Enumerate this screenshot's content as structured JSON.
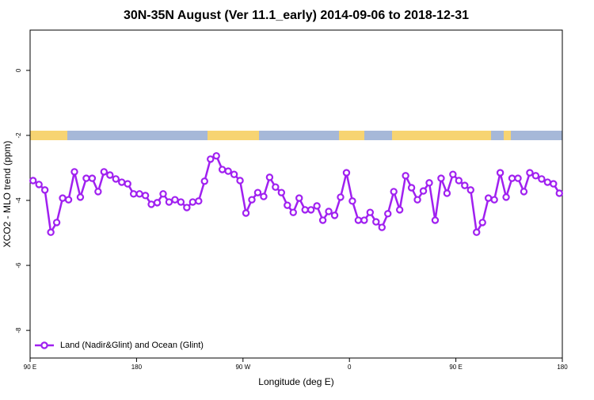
{
  "chart_data": {
    "type": "line",
    "title": "30N-35N August (Ver 11.1_early)   2014-09-06 to 2018-12-31",
    "x_label": "Longitude (deg E)",
    "y_label": "XCO2 - MLO trend (ppm)",
    "xlim": [
      90,
      540
    ],
    "xticks": [
      {
        "value": 90,
        "label": "90 E"
      },
      180,
      {
        "value": 270,
        "label": "90 W"
      },
      {
        "value": 360,
        "label": "0"
      },
      {
        "value": 450,
        "label": "90 E"
      },
      {
        "value": 540,
        "label": "180"
      }
    ],
    "ylim": [
      -8.85,
      1.24
    ],
    "yticks": [
      0,
      -2,
      -4,
      -6,
      -8
    ],
    "legend": "bottomleft",
    "x": [
      92.5,
      97.5,
      102.5,
      107.5,
      112.5,
      117.5,
      122.5,
      127.5,
      132.5,
      137.5,
      142.5,
      147.5,
      152.5,
      157.5,
      162.5,
      167.5,
      172.5,
      177.5,
      182.5,
      187.5,
      192.5,
      197.5,
      202.5,
      207.5,
      212.5,
      217.5,
      222.5,
      227.5,
      232.5,
      237.5,
      242.5,
      247.5,
      252.5,
      257.5,
      262.5,
      267.5,
      272.5,
      277.5,
      282.5,
      287.5,
      292.5,
      297.5,
      302.5,
      307.5,
      312.5,
      317.5,
      322.5,
      327.5,
      332.5,
      337.5,
      342.5,
      347.5,
      352.5,
      357.5,
      362.5,
      367.5,
      372.5,
      377.5,
      382.5,
      387.5,
      392.5,
      397.5,
      402.5,
      407.5,
      412.5,
      417.5,
      422.5,
      427.5,
      432.5,
      437.5,
      442.5,
      447.5,
      452.5,
      457.5,
      462.5,
      467.5,
      472.5,
      477.5,
      482.5,
      487.5,
      492.5,
      497.5,
      502.5,
      507.5,
      512.5,
      517.5,
      522.5,
      527.5,
      532.5,
      537.5
    ],
    "series": [
      {
        "name": "Land (Nadir&Glint) and Ocean (Glint)",
        "color": "#a020f0",
        "values": [
          -3.39,
          -3.51,
          -3.68,
          -4.98,
          -4.68,
          -3.93,
          -3.98,
          -3.12,
          -3.9,
          -3.32,
          -3.32,
          -3.73,
          -3.12,
          -3.22,
          -3.34,
          -3.44,
          -3.49,
          -3.8,
          -3.8,
          -3.85,
          -4.12,
          -4.07,
          -3.8,
          -4.05,
          -3.98,
          -4.05,
          -4.22,
          -4.05,
          -4.02,
          -3.41,
          -2.73,
          -2.63,
          -3.05,
          -3.1,
          -3.2,
          -3.39,
          -4.39,
          -3.98,
          -3.76,
          -3.88,
          -3.29,
          -3.59,
          -3.76,
          -4.15,
          -4.37,
          -3.93,
          -4.29,
          -4.29,
          -4.17,
          -4.61,
          -4.34,
          -4.46,
          -3.9,
          -3.15,
          -4.02,
          -4.61,
          -4.61,
          -4.37,
          -4.66,
          -4.83,
          -4.41,
          -3.73,
          -4.29,
          -3.24,
          -3.61,
          -3.98,
          -3.71,
          -3.46,
          -4.61,
          -3.32,
          -3.78,
          -3.2,
          -3.39,
          -3.54,
          -3.68,
          -4.98,
          -4.68,
          -3.93,
          -3.98,
          -3.15,
          -3.9,
          -3.32,
          -3.32,
          -3.73,
          -3.15,
          -3.24,
          -3.34,
          -3.44,
          -3.49,
          -3.78
        ]
      }
    ]
  }
}
